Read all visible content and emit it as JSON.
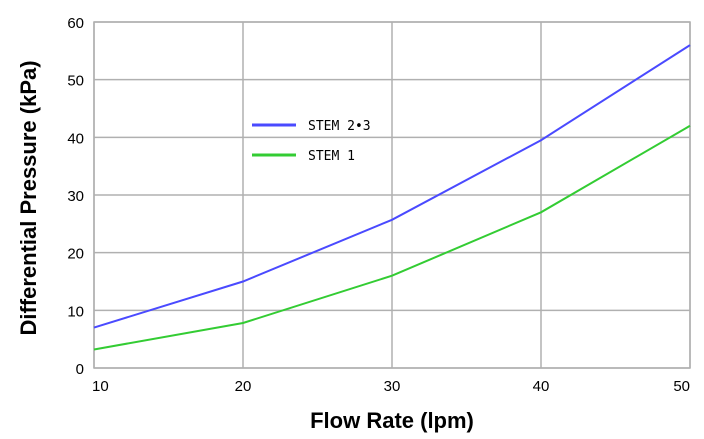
{
  "chart_data": {
    "type": "line",
    "title": "",
    "xlabel": "Flow Rate (lpm)",
    "ylabel": "Differential Pressure (kPa)",
    "x": [
      10,
      20,
      30,
      40,
      50
    ],
    "xlim": [
      10,
      50
    ],
    "ylim": [
      0,
      60
    ],
    "xticks": [
      10,
      20,
      30,
      40,
      50
    ],
    "yticks": [
      0,
      10,
      20,
      30,
      40,
      50,
      60
    ],
    "grid": true,
    "legend_position": "upper-left inside plot",
    "series": [
      {
        "name": "STEM 2•3",
        "color": "#4a4aff",
        "values": [
          7,
          15,
          25.7,
          39.5,
          56
        ]
      },
      {
        "name": "STEM 1",
        "color": "#33cc33",
        "values": [
          3.2,
          7.8,
          16,
          27,
          42
        ]
      }
    ]
  }
}
